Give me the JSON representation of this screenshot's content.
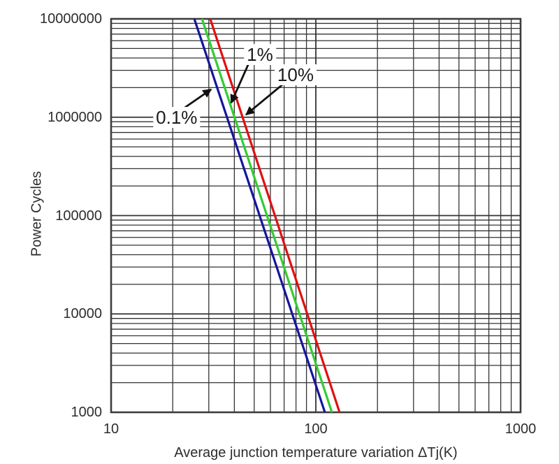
{
  "chart_data": {
    "type": "line",
    "title": "",
    "xlabel": "Average junction temperature variation ΔTj(K)",
    "ylabel": "Power Cycles",
    "x_scale": "log",
    "y_scale": "log",
    "xlim": [
      10,
      1000
    ],
    "ylim": [
      1000,
      10000000
    ],
    "grid": "minor log grid on both axes",
    "legend_position": "none",
    "x_ticks": [
      {
        "value": 10,
        "label": "10"
      },
      {
        "value": 100,
        "label": "100"
      },
      {
        "value": 1000,
        "label": "1000"
      }
    ],
    "y_ticks": [
      {
        "value": 1000,
        "label": "1000"
      },
      {
        "value": 10000,
        "label": "10000"
      },
      {
        "value": 100000,
        "label": "100000"
      },
      {
        "value": 1000000,
        "label": "1000000"
      },
      {
        "value": 10000000,
        "label": "10000000"
      }
    ],
    "series": [
      {
        "name": "0.1%",
        "color": "#15159e",
        "points": [
          [
            25.5,
            10000000
          ],
          [
            110.7,
            1000
          ]
        ]
      },
      {
        "name": "1%",
        "color": "#33cc33",
        "points": [
          [
            27.8,
            10000000
          ],
          [
            119.8,
            1000
          ]
        ]
      },
      {
        "name": "10%",
        "color": "#e01010",
        "points": [
          [
            30.5,
            10000000
          ],
          [
            130.6,
            1000
          ]
        ]
      }
    ],
    "annotations": [
      {
        "label": "0.1%",
        "label_at": [
          20.9,
          1000000
        ],
        "arrow_from": [
          22.6,
          1230000
        ],
        "arrow_to": [
          30.8,
          1920000
        ]
      },
      {
        "label": "1%",
        "label_at": [
          53.3,
          4340000
        ],
        "arrow_from": [
          47.8,
          3810000
        ],
        "arrow_to": [
          38.6,
          1400000
        ]
      },
      {
        "label": "10%",
        "label_at": [
          79.6,
          2700000
        ],
        "arrow_from": [
          70.8,
          2260000
        ],
        "arrow_to": [
          45.6,
          1060000
        ]
      }
    ],
    "style": {
      "grid_color": "#333333",
      "border_color": "#3d3d3d",
      "text_color": "#2d2d2d",
      "arrow_color": "#111111",
      "background": "#ffffff"
    }
  }
}
